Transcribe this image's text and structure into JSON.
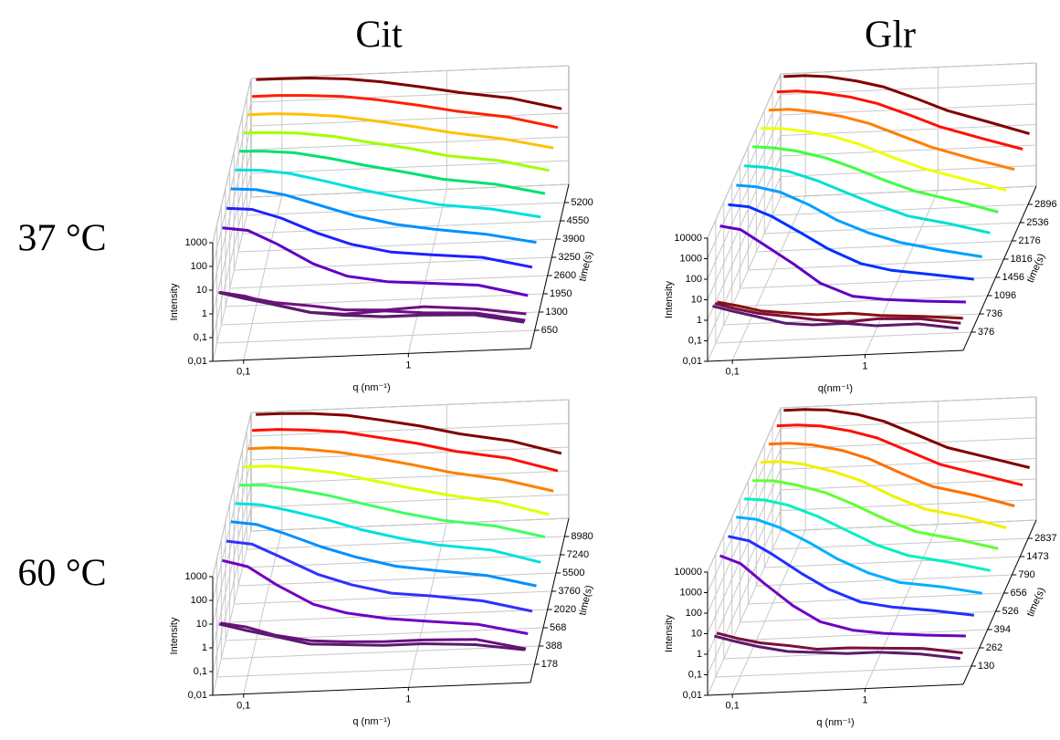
{
  "columns": [
    "Cit",
    "Glr"
  ],
  "rows": [
    "37 °C",
    "60 °C"
  ],
  "chart_data": [
    {
      "type": "waterfall3d",
      "xlabel": "q (nm⁻¹)",
      "ylabel": "Intensity",
      "zlabel": "time(s)",
      "log_x": true,
      "log_y": true,
      "grid": true,
      "x": [
        0.07,
        0.1,
        0.15,
        0.25,
        0.4,
        0.7,
        1.2,
        2.5,
        5
      ],
      "xlim": [
        0.065,
        5.5
      ],
      "xticks": [
        {
          "value": 0.1,
          "label": "0,1"
        },
        1
      ],
      "ylim": [
        0.01,
        1000
      ],
      "yticks": [
        {
          "value": 0.01,
          "label": "0,01"
        },
        {
          "value": 0.1,
          "label": "0,1"
        },
        1,
        10,
        100,
        1000
      ],
      "zlim": [
        0,
        5850
      ],
      "zticks": [
        650,
        1300,
        1950,
        2600,
        3250,
        3900,
        4550,
        5200
      ],
      "series": [
        {
          "time": 100,
          "color": "#5a1a6e",
          "values": [
            6,
            3,
            1.5,
            0.6,
            0.4,
            0.3,
            0.3,
            0.25,
            0.1
          ]
        },
        {
          "time": 250,
          "color": "#6a1080",
          "values": [
            4,
            2.5,
            1,
            0.4,
            0.3,
            0.35,
            0.25,
            0.2,
            0.08
          ]
        },
        {
          "time": 400,
          "color": "#701080",
          "values": [
            2.5,
            1.5,
            0.8,
            0.5,
            0.3,
            0.25,
            0.3,
            0.2,
            0.1
          ]
        },
        {
          "time": 650,
          "color": "#6000c0",
          "values": [
            700,
            500,
            120,
            15,
            4,
            2,
            1.5,
            1,
            0.3
          ]
        },
        {
          "time": 1300,
          "color": "#2020ff",
          "values": [
            800,
            650,
            250,
            50,
            15,
            6,
            4,
            2.5,
            0.8
          ]
        },
        {
          "time": 1950,
          "color": "#0090ff",
          "values": [
            900,
            750,
            400,
            120,
            40,
            15,
            8,
            4,
            1.5
          ]
        },
        {
          "time": 2600,
          "color": "#00e0e0",
          "values": [
            950,
            850,
            550,
            220,
            90,
            35,
            15,
            8,
            3
          ]
        },
        {
          "time": 3250,
          "color": "#00e070",
          "values": [
            1000,
            900,
            700,
            350,
            160,
            70,
            30,
            15,
            5
          ]
        },
        {
          "time": 3900,
          "color": "#a0ff00",
          "values": [
            1000,
            950,
            800,
            500,
            250,
            120,
            50,
            25,
            8
          ]
        },
        {
          "time": 4550,
          "color": "#ffc000",
          "values": [
            1000,
            1000,
            850,
            600,
            350,
            170,
            80,
            35,
            12
          ]
        },
        {
          "time": 5200,
          "color": "#ff2000",
          "values": [
            1000,
            1000,
            900,
            700,
            450,
            230,
            110,
            50,
            15
          ]
        },
        {
          "time": 5800,
          "color": "#800000",
          "values": [
            1000,
            1000,
            950,
            750,
            500,
            260,
            130,
            60,
            18
          ]
        }
      ]
    },
    {
      "type": "waterfall3d",
      "xlabel": "q(nm⁻¹)",
      "ylabel": "Intensity",
      "zlabel": "time(s)",
      "log_x": true,
      "log_y": true,
      "grid": true,
      "x": [
        0.07,
        0.1,
        0.15,
        0.25,
        0.4,
        0.7,
        1.2,
        2.5,
        5
      ],
      "xlim": [
        0.065,
        5.5
      ],
      "xticks": [
        {
          "value": 0.1,
          "label": "0,1"
        },
        1
      ],
      "ylim": [
        0.01,
        10000
      ],
      "yticks": [
        {
          "value": 0.01,
          "label": "0,01"
        },
        {
          "value": 0.1,
          "label": "0,1"
        },
        1,
        10,
        100,
        1000,
        10000
      ],
      "zlim": [
        16,
        3256
      ],
      "zticks": [
        376,
        736,
        1096,
        1456,
        1816,
        2176,
        2536,
        2896
      ],
      "series": [
        {
          "time": 50,
          "color": "#5a1a6e",
          "values": [
            4,
            2,
            1,
            0.4,
            0.3,
            0.3,
            0.2,
            0.2,
            0.1
          ]
        },
        {
          "time": 150,
          "color": "#7a1040",
          "values": [
            3,
            1.5,
            0.8,
            0.5,
            0.3,
            0.2,
            0.25,
            0.2,
            0.1
          ]
        },
        {
          "time": 250,
          "color": "#8a1010",
          "values": [
            2,
            1.2,
            0.6,
            0.4,
            0.3,
            0.3,
            0.2,
            0.15,
            0.1
          ]
        },
        {
          "time": 376,
          "color": "#6000c0",
          "values": [
            5000,
            3000,
            500,
            50,
            5,
            1,
            0.6,
            0.4,
            0.3
          ]
        },
        {
          "time": 736,
          "color": "#0030ff",
          "values": [
            7000,
            5000,
            1500,
            200,
            30,
            5,
            2,
            1,
            0.5
          ]
        },
        {
          "time": 1096,
          "color": "#00a0ff",
          "values": [
            8000,
            6000,
            3000,
            600,
            100,
            20,
            6,
            2,
            0.8
          ]
        },
        {
          "time": 1456,
          "color": "#00e0d0",
          "values": [
            9000,
            7000,
            4000,
            1200,
            300,
            60,
            15,
            5,
            1.5
          ]
        },
        {
          "time": 1816,
          "color": "#40ff40",
          "values": [
            10000,
            8000,
            5000,
            2000,
            600,
            120,
            30,
            8,
            2
          ]
        },
        {
          "time": 2176,
          "color": "#f0ff00",
          "values": [
            10000,
            9000,
            6000,
            2800,
            1000,
            200,
            50,
            12,
            3
          ]
        },
        {
          "time": 2536,
          "color": "#ff8000",
          "values": [
            10000,
            10000,
            7000,
            3500,
            1400,
            300,
            70,
            15,
            4
          ]
        },
        {
          "time": 2896,
          "color": "#ff1000",
          "values": [
            10000,
            10000,
            7500,
            4000,
            1700,
            400,
            90,
            20,
            5
          ]
        },
        {
          "time": 3200,
          "color": "#800000",
          "values": [
            10000,
            10000,
            8000,
            4200,
            1900,
            450,
            100,
            22,
            5
          ]
        }
      ]
    },
    {
      "type": "waterfall3d",
      "xlabel": "q (nm⁻¹)",
      "ylabel": "Intensity",
      "zlabel": "time(s)",
      "log_x": true,
      "log_y": true,
      "grid": true,
      "x": [
        0.07,
        0.1,
        0.15,
        0.25,
        0.4,
        0.7,
        1.2,
        2.5,
        5
      ],
      "xlim": [
        0.065,
        5.5
      ],
      "xticks": [
        {
          "value": 0.1,
          "label": "0,1"
        },
        1
      ],
      "ylim": [
        0.01,
        1000
      ],
      "yticks": [
        {
          "value": 0.01,
          "label": "0,01"
        },
        {
          "value": 0.1,
          "label": "0,1"
        },
        1,
        10,
        100,
        1000
      ],
      "zlim": [
        0,
        10720
      ],
      "zticks": [
        178,
        388,
        568,
        2020,
        3760,
        5500,
        7240,
        8980
      ],
      "series": [
        {
          "time": 50,
          "color": "#5a1a6e",
          "values": [
            6,
            3,
            1.5,
            0.6,
            0.5,
            0.4,
            0.4,
            0.3,
            0.15
          ]
        },
        {
          "time": 100,
          "color": "#6a1080",
          "values": [
            4,
            2.5,
            1,
            0.5,
            0.4,
            0.35,
            0.35,
            0.3,
            0.1
          ]
        },
        {
          "time": 178,
          "color": "#7000c0",
          "values": [
            800,
            400,
            60,
            8,
            3,
            1.5,
            1,
            0.6,
            0.2
          ]
        },
        {
          "time": 388,
          "color": "#3030ff",
          "values": [
            900,
            600,
            150,
            25,
            8,
            3,
            2,
            1,
            0.3
          ]
        },
        {
          "time": 568,
          "color": "#0090ff",
          "values": [
            1000,
            700,
            250,
            60,
            20,
            7,
            4,
            2,
            0.6
          ]
        },
        {
          "time": 2020,
          "color": "#00e0e0",
          "values": [
            1000,
            800,
            400,
            150,
            50,
            18,
            8,
            4,
            1
          ]
        },
        {
          "time": 3760,
          "color": "#40ff60",
          "values": [
            1000,
            900,
            550,
            250,
            100,
            35,
            15,
            7,
            2
          ]
        },
        {
          "time": 5500,
          "color": "#e0ff00",
          "values": [
            1000,
            1000,
            700,
            400,
            180,
            70,
            30,
            12,
            3
          ]
        },
        {
          "time": 7240,
          "color": "#ff8000",
          "values": [
            1000,
            1000,
            800,
            500,
            260,
            110,
            45,
            18,
            5
          ]
        },
        {
          "time": 8980,
          "color": "#ff1000",
          "values": [
            1000,
            1000,
            850,
            600,
            320,
            150,
            60,
            25,
            6
          ]
        },
        {
          "time": 10500,
          "color": "#800000",
          "values": [
            1000,
            1000,
            900,
            650,
            360,
            170,
            70,
            28,
            7
          ]
        }
      ]
    },
    {
      "type": "waterfall3d",
      "xlabel": "q (nm⁻¹)",
      "ylabel": "Intensity",
      "zlabel": "time(s)",
      "log_x": true,
      "log_y": true,
      "grid": true,
      "x": [
        0.07,
        0.1,
        0.15,
        0.25,
        0.4,
        0.7,
        1.2,
        2.5,
        5
      ],
      "xlim": [
        0.065,
        5.5
      ],
      "xticks": [
        {
          "value": 0.1,
          "label": "0,1"
        },
        1
      ],
      "ylim": [
        0.01,
        10000
      ],
      "yticks": [
        {
          "value": 0.01,
          "label": "0,01"
        },
        {
          "value": 0.1,
          "label": "0,1"
        },
        1,
        10,
        100,
        1000,
        10000
      ],
      "zlim": [
        0,
        4200
      ],
      "zticks": [
        130,
        262,
        394,
        526,
        656,
        790,
        1473,
        2837
      ],
      "series": [
        {
          "time": 40,
          "color": "#5a1a6e",
          "values": [
            4,
            2,
            1,
            0.5,
            0.4,
            0.3,
            0.3,
            0.2,
            0.1
          ]
        },
        {
          "time": 80,
          "color": "#7a1040",
          "values": [
            3,
            1.5,
            0.8,
            0.5,
            0.3,
            0.3,
            0.25,
            0.2,
            0.1
          ]
        },
        {
          "time": 130,
          "color": "#7000c0",
          "values": [
            8000,
            3000,
            300,
            20,
            3,
            1,
            0.6,
            0.4,
            0.3
          ]
        },
        {
          "time": 262,
          "color": "#2030ff",
          "values": [
            9000,
            5000,
            1000,
            100,
            15,
            3,
            1.5,
            0.8,
            0.4
          ]
        },
        {
          "time": 394,
          "color": "#00b0ff",
          "values": [
            10000,
            7000,
            2500,
            400,
            60,
            10,
            3,
            1.5,
            0.6
          ]
        },
        {
          "time": 526,
          "color": "#00f0c0",
          "values": [
            10000,
            8000,
            4000,
            1000,
            200,
            30,
            8,
            3,
            1
          ]
        },
        {
          "time": 656,
          "color": "#60ff30",
          "values": [
            10000,
            9000,
            5000,
            1800,
            450,
            70,
            15,
            5,
            1.5
          ]
        },
        {
          "time": 790,
          "color": "#f0f000",
          "values": [
            10000,
            10000,
            6500,
            2500,
            800,
            120,
            25,
            8,
            2
          ]
        },
        {
          "time": 1473,
          "color": "#ff7000",
          "values": [
            10000,
            10000,
            7500,
            3500,
            1200,
            200,
            40,
            12,
            3
          ]
        },
        {
          "time": 2837,
          "color": "#ff1000",
          "values": [
            10000,
            10000,
            8000,
            4000,
            1600,
            300,
            60,
            15,
            4
          ]
        },
        {
          "time": 4000,
          "color": "#800000",
          "values": [
            10000,
            10000,
            8500,
            4500,
            1800,
            350,
            70,
            18,
            5
          ]
        }
      ]
    }
  ]
}
